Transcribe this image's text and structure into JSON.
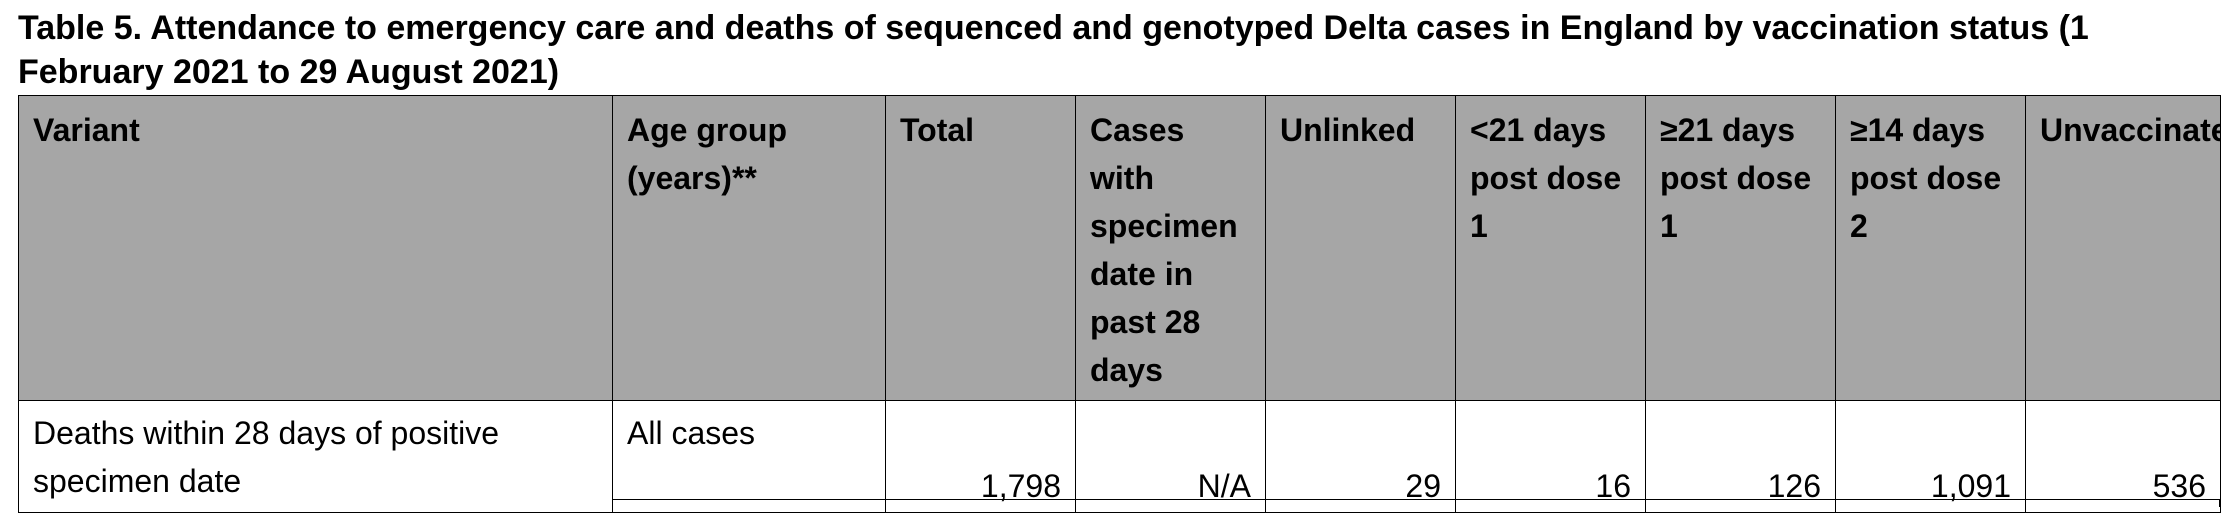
{
  "caption": "Table 5. Attendance to emergency care and deaths of sequenced and genotyped Delta cases in England by vaccination status (1 February 2021 to 29 August 2021)",
  "table": {
    "headers": [
      "Variant",
      "Age group (years)**",
      "Total",
      "Cases with specimen date in past 28 days",
      "Unlinked",
      "<21 days post dose 1",
      "≥21 days post dose 1",
      "≥14 days post dose 2",
      "Unvaccinated"
    ],
    "rows": [
      {
        "variant": "Deaths within 28 days of positive specimen date",
        "age_group": "All cases",
        "total": "1,798",
        "past_28_days": "N/A",
        "unlinked": "29",
        "lt21_post_dose1": "16",
        "ge21_post_dose1": "126",
        "ge14_post_dose2": "1,091",
        "unvaccinated": "536"
      }
    ]
  }
}
